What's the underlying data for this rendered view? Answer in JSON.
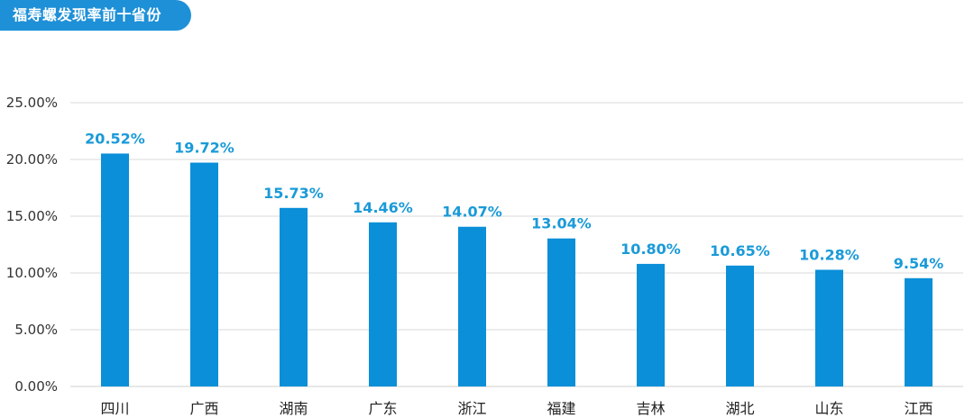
{
  "title": "福寿螺发现率前十省份",
  "colors": {
    "accent": "#1e90d8",
    "bar": "#0a8fd8",
    "data_label": "#1a9ad8",
    "grid": "#d9d9d9",
    "axis": "#cfcfcf"
  },
  "chart_data": {
    "type": "bar",
    "title": "福寿螺发现率前十省份",
    "xlabel": "",
    "ylabel": "",
    "categories": [
      "四川",
      "广西",
      "湖南",
      "广东",
      "浙江",
      "福建",
      "吉林",
      "湖北",
      "山东",
      "江西"
    ],
    "values": [
      20.52,
      19.72,
      15.73,
      14.46,
      14.07,
      13.04,
      10.8,
      10.65,
      10.28,
      9.54
    ],
    "data_labels": [
      "20.52%",
      "19.72%",
      "15.73%",
      "14.46%",
      "14.07%",
      "13.04%",
      "10.80%",
      "10.65%",
      "10.28%",
      "9.54%"
    ],
    "y_ticks": [
      0,
      5,
      10,
      15,
      20,
      25
    ],
    "y_tick_labels": [
      "0.00%",
      "5.00%",
      "10.00%",
      "15.00%",
      "20.00%",
      "25.00%"
    ],
    "ylim": [
      0,
      25
    ],
    "grid": true,
    "legend": "none"
  }
}
